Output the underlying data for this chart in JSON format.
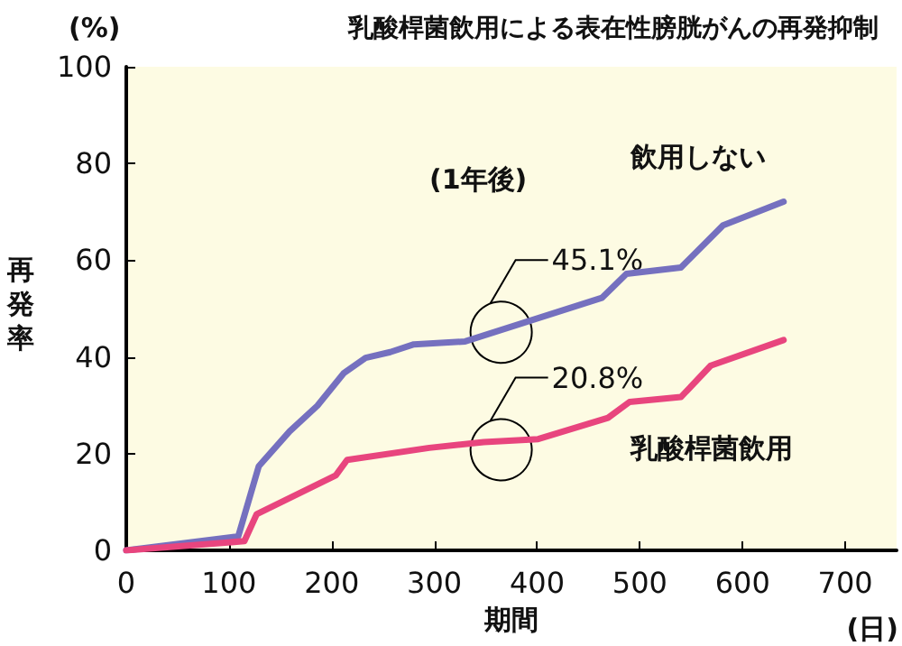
{
  "chart_data": {
    "type": "line",
    "title": "乳酸桿菌飲用による表在性膀胱がんの再発抑制",
    "xlabel": "期間",
    "ylabel": "再発率",
    "annotations": [
      "(%)",
      "(日)",
      "(1年後)",
      {
        "text": "45.1%",
        "x": 365,
        "y": 45.1
      },
      {
        "text": "20.8%",
        "x": 365,
        "y": 20.8
      }
    ],
    "series": [
      {
        "name": "飲用しない",
        "color": "#7570bf",
        "x": [
          0,
          109,
          129,
          159,
          186,
          212,
          233,
          257,
          280,
          330,
          463,
          487,
          540,
          581,
          640
        ],
        "values": [
          0,
          2.9,
          17.4,
          24.6,
          29.9,
          36.7,
          39.8,
          41,
          42.6,
          43.2,
          52.2,
          57.2,
          58.5,
          67.2,
          72.1
        ]
      },
      {
        "name": "乳酸桿菌飲用",
        "color": "#e8457e",
        "x": [
          0,
          115,
          127,
          204,
          215,
          295,
          348,
          401,
          469,
          490,
          540,
          569,
          640
        ],
        "values": [
          0,
          1.9,
          7.5,
          15.5,
          18.7,
          21.2,
          22.4,
          23,
          27.4,
          30.7,
          31.7,
          38.2,
          43.5
        ]
      }
    ],
    "xlim": [
      0,
      750
    ],
    "xticks": [
      0,
      100,
      200,
      300,
      400,
      500,
      600,
      700
    ],
    "ylim": [
      0,
      100
    ],
    "yticks": [
      0,
      20,
      40,
      60,
      80,
      100
    ],
    "grid": false,
    "legend": false,
    "marker": "none",
    "line_style": "solid"
  }
}
